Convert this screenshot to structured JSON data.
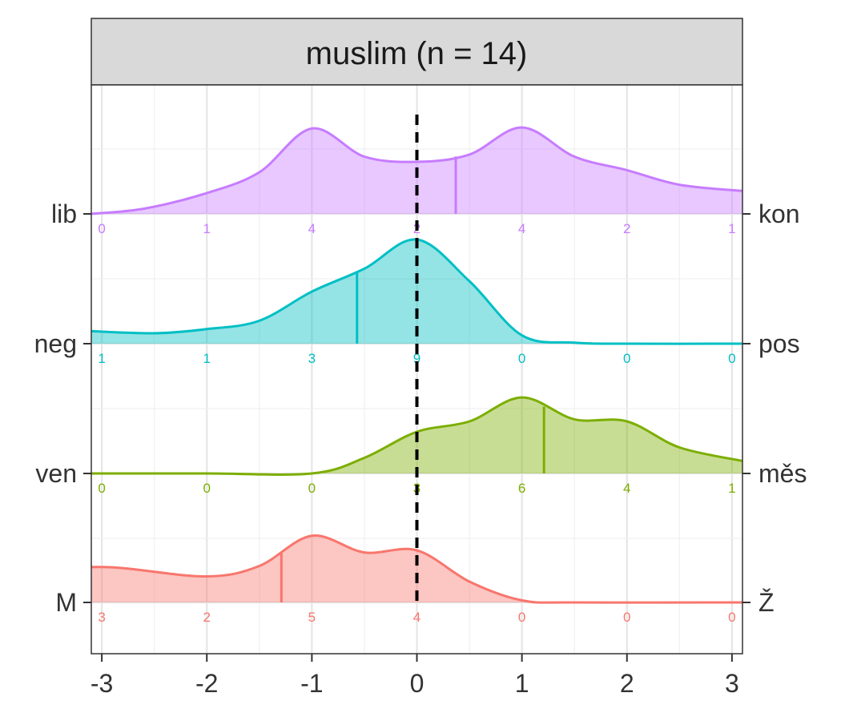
{
  "chart_data": {
    "type": "ridgeline-density",
    "title": "muslim (n = 14)",
    "xlabel": "",
    "ylabel": "",
    "xlim": [
      -3.1,
      3.1
    ],
    "x_ticks": [
      "-3",
      "-2",
      "-1",
      "0",
      "1",
      "2",
      "3"
    ],
    "x_tick_values": [
      -3,
      -2,
      -1,
      0,
      1,
      2,
      3
    ],
    "reference_line": {
      "x": 0,
      "style": "dashed",
      "color": "#000000"
    },
    "grid": true,
    "count_positions": [
      -3,
      -2,
      -1,
      0,
      1,
      2,
      3
    ],
    "series": [
      {
        "left_label": "lib",
        "right_label": "kon",
        "color": "#C77CFF",
        "counts": [
          0,
          1,
          4,
          2,
          4,
          2,
          1
        ],
        "mean": 0.37,
        "density": [
          [
            -3.1,
            0.0
          ],
          [
            -2.6,
            0.05
          ],
          [
            -2.0,
            0.2
          ],
          [
            -1.5,
            0.4
          ],
          [
            -1.0,
            0.82
          ],
          [
            -0.5,
            0.55
          ],
          [
            0,
            0.5
          ],
          [
            0.5,
            0.57
          ],
          [
            1.0,
            0.83
          ],
          [
            1.5,
            0.55
          ],
          [
            2.0,
            0.42
          ],
          [
            2.5,
            0.28
          ],
          [
            3.1,
            0.22
          ]
        ]
      },
      {
        "left_label": "neg",
        "right_label": "pos",
        "color": "#00BFC4",
        "counts": [
          1,
          1,
          3,
          9,
          0,
          0,
          0
        ],
        "mean": -0.57,
        "density": [
          [
            -3.1,
            0.12
          ],
          [
            -2.5,
            0.1
          ],
          [
            -2.0,
            0.14
          ],
          [
            -1.5,
            0.22
          ],
          [
            -1.0,
            0.5
          ],
          [
            -0.5,
            0.72
          ],
          [
            0,
            1.0
          ],
          [
            0.5,
            0.6
          ],
          [
            1.0,
            0.08
          ],
          [
            1.5,
            0.01
          ],
          [
            2.0,
            0.0
          ],
          [
            3.1,
            0.0
          ]
        ]
      },
      {
        "left_label": "ven",
        "right_label": "měs",
        "color": "#7CAE00",
        "counts": [
          0,
          0,
          0,
          3,
          6,
          4,
          1
        ],
        "mean": 1.21,
        "density": [
          [
            -3.1,
            0.0
          ],
          [
            -2.0,
            0.0
          ],
          [
            -1.0,
            0.0
          ],
          [
            -0.5,
            0.15
          ],
          [
            0,
            0.4
          ],
          [
            0.5,
            0.5
          ],
          [
            1.0,
            0.73
          ],
          [
            1.5,
            0.52
          ],
          [
            2.0,
            0.5
          ],
          [
            2.5,
            0.25
          ],
          [
            3.1,
            0.12
          ]
        ]
      },
      {
        "left_label": "M",
        "right_label": "Ž",
        "color": "#F8766D",
        "counts": [
          3,
          2,
          5,
          4,
          0,
          0,
          0
        ],
        "mean": -1.29,
        "density": [
          [
            -3.1,
            0.34
          ],
          [
            -2.8,
            0.33
          ],
          [
            -2.0,
            0.25
          ],
          [
            -1.5,
            0.35
          ],
          [
            -1.0,
            0.64
          ],
          [
            -0.5,
            0.48
          ],
          [
            0,
            0.5
          ],
          [
            0.5,
            0.2
          ],
          [
            1.0,
            0.02
          ],
          [
            1.5,
            0.0
          ],
          [
            3.1,
            0.0
          ]
        ]
      }
    ]
  }
}
